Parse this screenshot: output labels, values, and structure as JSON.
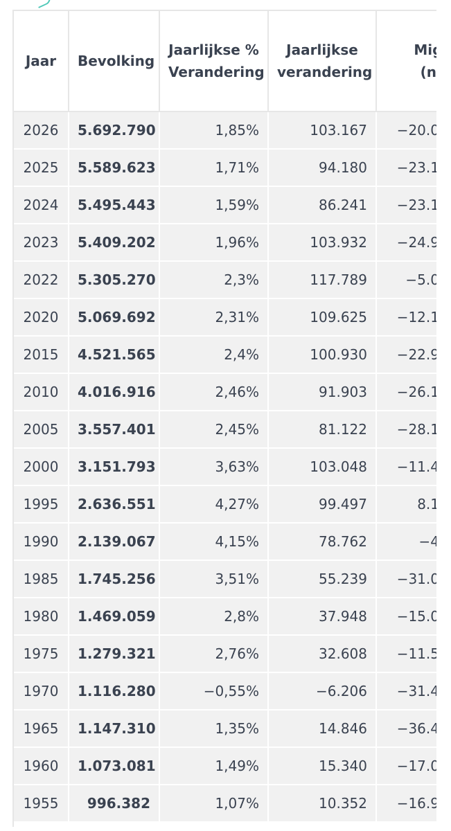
{
  "table": {
    "headers": {
      "year": "Jaar",
      "population": "Bevolking",
      "pct_line1": "Jaarlijkse %",
      "pct_line2": "Verandering",
      "chg_line1": "Jaarlijkse",
      "chg_line2": "verandering",
      "mig_line1": "Migrant",
      "mig_line2": "(netto"
    },
    "rows": [
      {
        "year": "2026",
        "population": "5.692.790",
        "pct": "1,85%",
        "change": "103.167",
        "migrants": "−20.0"
      },
      {
        "year": "2025",
        "population": "5.589.623",
        "pct": "1,71%",
        "change": "94.180",
        "migrants": "−23.1"
      },
      {
        "year": "2024",
        "population": "5.495.443",
        "pct": "1,59%",
        "change": "86.241",
        "migrants": "−23.1"
      },
      {
        "year": "2023",
        "population": "5.409.202",
        "pct": "1,96%",
        "change": "103.932",
        "migrants": "−24.9"
      },
      {
        "year": "2022",
        "population": "5.305.270",
        "pct": "2,3%",
        "change": "117.789",
        "migrants": "−5.0"
      },
      {
        "year": "2020",
        "population": "5.069.692",
        "pct": "2,31%",
        "change": "109.625",
        "migrants": "−12.1"
      },
      {
        "year": "2015",
        "population": "4.521.565",
        "pct": "2,4%",
        "change": "100.930",
        "migrants": "−22.9"
      },
      {
        "year": "2010",
        "population": "4.016.916",
        "pct": "2,46%",
        "change": "91.903",
        "migrants": "−26.1"
      },
      {
        "year": "2005",
        "population": "3.557.401",
        "pct": "2,45%",
        "change": "81.122",
        "migrants": "−28.1"
      },
      {
        "year": "2000",
        "population": "3.151.793",
        "pct": "3,63%",
        "change": "103.048",
        "migrants": "−11.4"
      },
      {
        "year": "1995",
        "population": "2.636.551",
        "pct": "4,27%",
        "change": "99.497",
        "migrants": "8.1"
      },
      {
        "year": "1990",
        "population": "2.139.067",
        "pct": "4,15%",
        "change": "78.762",
        "migrants": "−4"
      },
      {
        "year": "1985",
        "population": "1.745.256",
        "pct": "3,51%",
        "change": "55.239",
        "migrants": "−31.0"
      },
      {
        "year": "1980",
        "population": "1.469.059",
        "pct": "2,8%",
        "change": "37.948",
        "migrants": "−15.0"
      },
      {
        "year": "1975",
        "population": "1.279.321",
        "pct": "2,76%",
        "change": "32.608",
        "migrants": "−11.5"
      },
      {
        "year": "1970",
        "population": "1.116.280",
        "pct": "−0,55%",
        "change": "−6.206",
        "migrants": "−31.4"
      },
      {
        "year": "1965",
        "population": "1.147.310",
        "pct": "1,35%",
        "change": "14.846",
        "migrants": "−36.4"
      },
      {
        "year": "1960",
        "population": "1.073.081",
        "pct": "1,49%",
        "change": "15.340",
        "migrants": "−17.0"
      },
      {
        "year": "1955",
        "population": "996.382",
        "pct": "1,07%",
        "change": "10.352",
        "migrants": "−16.9"
      }
    ]
  },
  "colors": {
    "row_background": "#f1f1f1",
    "grid_line": "#e6e6e6",
    "text": "#3a4250",
    "accent_mark": "#4fc8b8"
  }
}
